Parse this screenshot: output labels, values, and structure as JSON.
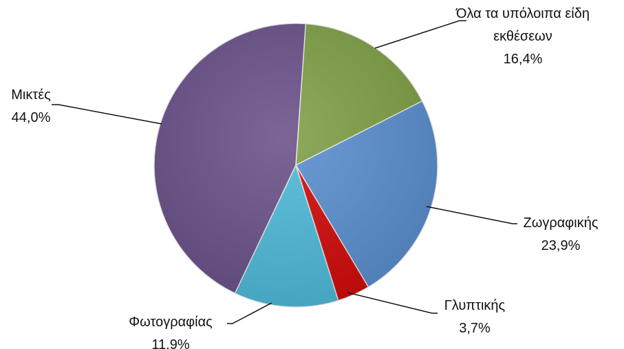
{
  "chart_data": {
    "type": "pie",
    "categories": [
      "Όλα τα υπόλοιπα είδη εκθέσεων",
      "Ζωγραφικής",
      "Γλυπτικής",
      "Φωτογραφίας",
      "Μικτές"
    ],
    "values": [
      16.4,
      23.9,
      3.7,
      11.9,
      44.0
    ],
    "value_labels": [
      "16,4%",
      "23,9%",
      "3,7%",
      "11,9%",
      "44,0%"
    ],
    "colors": [
      "#7f9f46",
      "#5a8ecf",
      "#d10a0a",
      "#4db9d8",
      "#6a5089"
    ]
  }
}
